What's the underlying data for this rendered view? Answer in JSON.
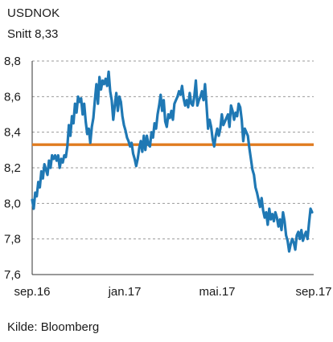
{
  "chart_data": {
    "type": "line",
    "title": "USDNOK",
    "subtitle": "Snitt 8,33",
    "source": "Kilde: Bloomberg",
    "ylim": [
      7.6,
      8.8
    ],
    "y_ticks": [
      "7,6",
      "7,8",
      "8,0",
      "8,2",
      "8,4",
      "8,6",
      "8,8"
    ],
    "x_ticks": [
      "sep.16",
      "jan.17",
      "mai.17",
      "sep.17"
    ],
    "grid": true,
    "colors": {
      "line": "#1f78b4",
      "average": "#e07b1f",
      "grid": "#9a9a9a"
    },
    "average": 8.33,
    "series": [
      {
        "values": [
          8.02,
          7.97,
          8.06,
          8.04,
          8.12,
          8.09,
          8.18,
          8.14,
          8.22,
          8.19,
          8.16,
          8.24,
          8.2,
          8.27,
          8.25,
          8.27,
          8.24,
          8.27,
          8.2,
          8.25,
          8.23,
          8.27,
          8.26,
          8.32,
          8.44,
          8.38,
          8.49,
          8.45,
          8.56,
          8.51,
          8.6,
          8.57,
          8.59,
          8.5,
          8.56,
          8.46,
          8.39,
          8.42,
          8.34,
          8.43,
          8.48,
          8.58,
          8.67,
          8.56,
          8.71,
          8.64,
          8.69,
          8.67,
          8.7,
          8.66,
          8.74,
          8.63,
          8.58,
          8.47,
          8.55,
          8.62,
          8.52,
          8.6,
          8.57,
          8.49,
          8.44,
          8.41,
          8.37,
          8.35,
          8.32,
          8.34,
          8.28,
          8.25,
          8.21,
          8.25,
          8.31,
          8.35,
          8.29,
          8.38,
          8.3,
          8.38,
          8.33,
          8.32,
          8.4,
          8.37,
          8.45,
          8.42,
          8.5,
          8.55,
          8.61,
          8.52,
          8.58,
          8.46,
          8.43,
          8.5,
          8.48,
          8.52,
          8.47,
          8.56,
          8.58,
          8.6,
          8.63,
          8.61,
          8.66,
          8.59,
          8.55,
          8.58,
          8.54,
          8.62,
          8.56,
          8.55,
          8.6,
          8.69,
          8.55,
          8.58,
          8.6,
          8.63,
          8.58,
          8.67,
          8.55,
          8.42,
          8.47,
          8.43,
          8.36,
          8.32,
          8.38,
          8.42,
          8.38,
          8.42,
          8.5,
          8.44,
          8.46,
          8.48,
          8.5,
          8.43,
          8.55,
          8.52,
          8.47,
          8.51,
          8.49,
          8.56,
          8.54,
          8.47,
          8.35,
          8.42,
          8.4,
          8.38,
          8.31,
          8.25,
          8.19,
          8.16,
          8.09,
          8.06,
          8.02,
          7.98,
          8.03,
          7.96,
          7.92,
          7.95,
          7.88,
          7.97,
          7.91,
          7.94,
          7.9,
          7.95,
          7.92,
          7.87,
          7.91,
          7.85,
          7.95,
          7.9,
          7.82,
          7.79,
          7.73,
          7.77,
          7.8,
          7.78,
          7.74,
          7.82,
          7.84,
          7.8,
          7.85,
          7.79,
          7.82,
          7.84,
          7.8,
          7.89,
          7.97,
          7.95
        ]
      }
    ]
  }
}
